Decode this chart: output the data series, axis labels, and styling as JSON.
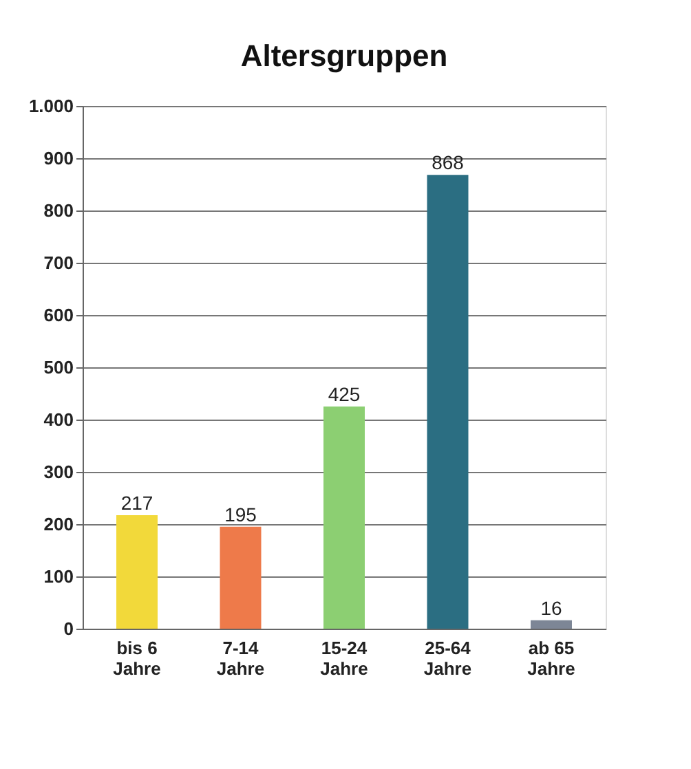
{
  "chart_data": {
    "type": "bar",
    "title": "Altersgruppen",
    "categories": [
      "bis 6 Jahre",
      "7-14 Jahre",
      "15-24 Jahre",
      "25-64 Jahre",
      "ab 65 Jahre"
    ],
    "values": [
      217,
      195,
      425,
      868,
      16
    ],
    "colors": [
      "#f2d93a",
      "#ee7a4a",
      "#8ccf72",
      "#2b6e82",
      "#7d8696"
    ],
    "ylim": [
      0,
      1000
    ],
    "yticks": [
      0,
      100,
      200,
      300,
      400,
      500,
      600,
      700,
      800,
      900,
      {
        "value": 1000,
        "label": "1.000"
      }
    ],
    "grid": "y",
    "data_labels": true
  }
}
